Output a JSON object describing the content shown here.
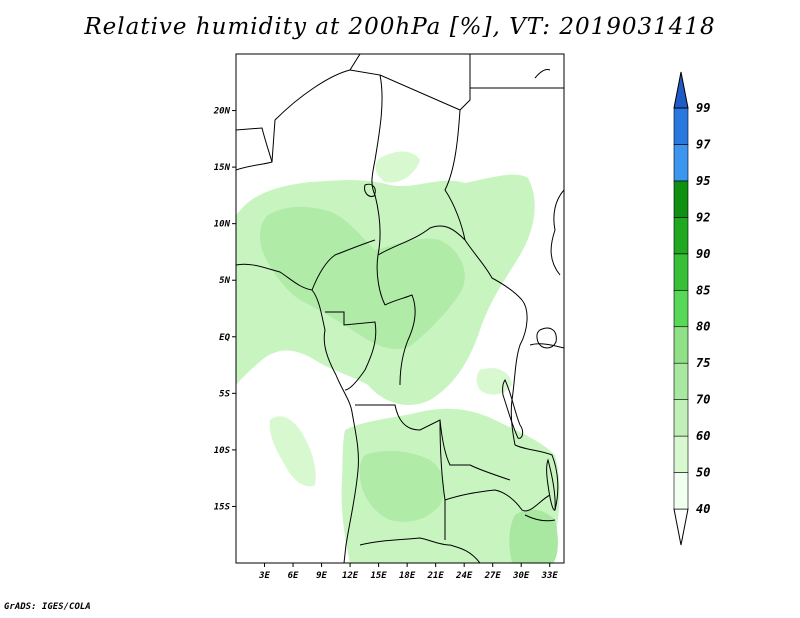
{
  "title": "Relative humidity at 200hPa [%], VT: 2019031418",
  "credit": "GrADS: IGES/COLA",
  "map": {
    "lon_range": [
      0,
      34.5
    ],
    "lat_range": [
      -20,
      25
    ],
    "lat_ticks": [
      {
        "value": 20,
        "label": "20N"
      },
      {
        "value": 15,
        "label": "15N"
      },
      {
        "value": 10,
        "label": "10N"
      },
      {
        "value": 5,
        "label": "5N"
      },
      {
        "value": 0,
        "label": "EQ"
      },
      {
        "value": -5,
        "label": "5S"
      },
      {
        "value": -10,
        "label": "10S"
      },
      {
        "value": -15,
        "label": "15S"
      }
    ],
    "lon_ticks": [
      {
        "value": 3,
        "label": "3E"
      },
      {
        "value": 6,
        "label": "6E"
      },
      {
        "value": 9,
        "label": "9E"
      },
      {
        "value": 12,
        "label": "12E"
      },
      {
        "value": 15,
        "label": "15E"
      },
      {
        "value": 18,
        "label": "18E"
      },
      {
        "value": 21,
        "label": "21E"
      },
      {
        "value": 24,
        "label": "24E"
      },
      {
        "value": 27,
        "label": "27E"
      },
      {
        "value": 30,
        "label": "30E"
      },
      {
        "value": 33,
        "label": "33E"
      }
    ]
  },
  "colorbar": {
    "levels": [
      {
        "label": "40",
        "color": "#f0fff0"
      },
      {
        "label": "50",
        "color": "#d8f8d0"
      },
      {
        "label": "60",
        "color": "#c0f0b8"
      },
      {
        "label": "70",
        "color": "#a8e8a0"
      },
      {
        "label": "75",
        "color": "#90e088"
      },
      {
        "label": "80",
        "color": "#58d858"
      },
      {
        "label": "85",
        "color": "#38c038"
      },
      {
        "label": "90",
        "color": "#20a820"
      },
      {
        "label": "92",
        "color": "#109010"
      },
      {
        "label": "95",
        "color": "#3c96f0"
      },
      {
        "label": "97",
        "color": "#2878e0"
      },
      {
        "label": "99",
        "color": "#1e5ac8"
      }
    ],
    "bottom_color": "#ffffff",
    "top_color": "#1e5ac8"
  }
}
